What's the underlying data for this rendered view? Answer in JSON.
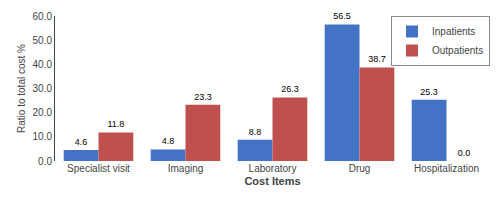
{
  "chart_data": {
    "type": "bar",
    "xlabel": "Cost Items",
    "ylabel": "Ratio to total cost %",
    "categories": [
      "Specialist visit",
      "Imaging",
      "Laboratory",
      "Drug",
      "Hospitalization"
    ],
    "series": [
      {
        "name": "Inpatients",
        "color": "#4472C4",
        "values": [
          4.6,
          4.8,
          8.8,
          56.5,
          25.3
        ],
        "value_labels": [
          "4.6",
          "4.8",
          "8.8",
          "56.5",
          "25.3"
        ]
      },
      {
        "name": "Outpatients",
        "color": "#C0504D",
        "values": [
          11.8,
          23.3,
          26.3,
          38.7,
          0.0
        ],
        "value_labels": [
          "11.8",
          "23.3",
          "26.3",
          "38.7",
          "0.0"
        ]
      }
    ],
    "ylim": [
      0,
      60.0
    ],
    "yticks": [
      {
        "value": 0,
        "label": "0.0"
      },
      {
        "value": 10,
        "label": "10.0"
      },
      {
        "value": 20,
        "label": "20.0"
      },
      {
        "value": 30,
        "label": "30.0"
      },
      {
        "value": 40,
        "label": "40.0"
      },
      {
        "value": 50,
        "label": "50.0"
      },
      {
        "value": 60,
        "label": "60.0"
      }
    ],
    "grid": false,
    "legend": "upper right",
    "data_labels": true
  }
}
